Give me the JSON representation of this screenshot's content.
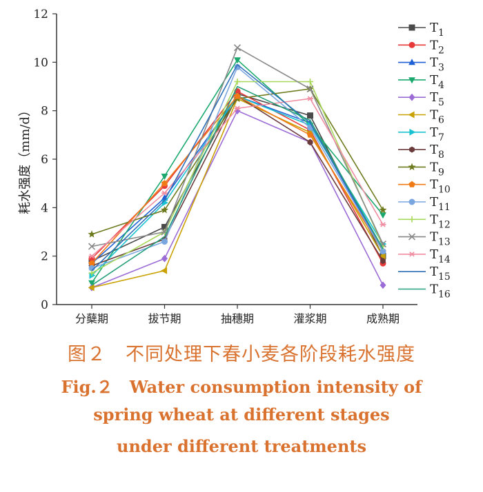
{
  "chart_data": {
    "type": "line",
    "categories": [
      "分蘖期",
      "拔节期",
      "抽穗期",
      "灌浆期",
      "成熟期"
    ],
    "ylabel": "耗水强度（mm/d）",
    "xlabel": "",
    "ylim": [
      0,
      12
    ],
    "yticks": [
      0,
      2,
      4,
      6,
      8,
      10,
      12
    ],
    "grid": false,
    "legend_position": "right",
    "series": [
      {
        "name": "T1",
        "marker": "square",
        "color": "#4a4a4a",
        "values": [
          1.8,
          3.2,
          8.7,
          7.8,
          2.0
        ]
      },
      {
        "name": "T2",
        "marker": "circle",
        "color": "#e8393a",
        "values": [
          1.9,
          4.9,
          8.8,
          7.2,
          1.7
        ]
      },
      {
        "name": "T3",
        "marker": "triangle-up",
        "color": "#1f5fd6",
        "values": [
          1.7,
          4.4,
          8.6,
          7.5,
          2.2
        ]
      },
      {
        "name": "T4",
        "marker": "triangle-down",
        "color": "#1aa86e",
        "values": [
          0.9,
          5.3,
          10.1,
          7.4,
          3.7
        ]
      },
      {
        "name": "T5",
        "marker": "diamond",
        "color": "#9b6bd6",
        "values": [
          0.7,
          1.9,
          8.0,
          6.7,
          0.8
        ]
      },
      {
        "name": "T6",
        "marker": "triangle-left",
        "color": "#c9a100",
        "values": [
          0.7,
          1.4,
          8.5,
          7.1,
          2.0
        ]
      },
      {
        "name": "T7",
        "marker": "triangle-right",
        "color": "#18c2d0",
        "values": [
          1.2,
          4.2,
          8.6,
          7.4,
          2.5
        ]
      },
      {
        "name": "T8",
        "marker": "hexagon",
        "color": "#6b3b3b",
        "values": [
          1.6,
          2.7,
          8.6,
          6.7,
          1.8
        ]
      },
      {
        "name": "T9",
        "marker": "star",
        "color": "#6e7a1e",
        "values": [
          2.9,
          3.9,
          8.5,
          8.9,
          3.9
        ]
      },
      {
        "name": "T10",
        "marker": "pentagon",
        "color": "#f07a16",
        "values": [
          1.7,
          5.0,
          8.6,
          7.0,
          2.2
        ]
      },
      {
        "name": "T11",
        "marker": "circle",
        "color": "#7aa6e0",
        "values": [
          1.5,
          2.6,
          9.8,
          7.3,
          2.2
        ]
      },
      {
        "name": "T12",
        "marker": "plus",
        "color": "#a8d85a",
        "values": [
          1.3,
          3.0,
          9.2,
          9.2,
          2.4
        ]
      },
      {
        "name": "T13",
        "marker": "x",
        "color": "#888888",
        "values": [
          2.4,
          3.0,
          10.6,
          8.9,
          2.5
        ]
      },
      {
        "name": "T14",
        "marker": "asterisk",
        "color": "#f08ca0",
        "values": [
          2.0,
          4.6,
          8.1,
          8.5,
          3.3
        ]
      },
      {
        "name": "T15",
        "marker": "none",
        "color": "#2e6fb8",
        "values": [
          1.4,
          4.3,
          9.9,
          7.5,
          2.3
        ]
      },
      {
        "name": "T16",
        "marker": "none",
        "color": "#25a07a",
        "values": [
          0.8,
          2.8,
          9.0,
          7.6,
          2.3
        ]
      }
    ]
  },
  "caption": {
    "zh": "图２　不同处理下春小麦各阶段耗水强度",
    "en_line1": "Fig.２　Water consumption intensity of",
    "en_line2": "spring wheat at different stages",
    "en_line3": "under different treatments"
  },
  "legend_labels": [
    "T1",
    "T2",
    "T3",
    "T4",
    "T5",
    "T6",
    "T7",
    "T8",
    "T9",
    "T10",
    "T11",
    "T12",
    "T13",
    "T14",
    "T15",
    "T16"
  ]
}
